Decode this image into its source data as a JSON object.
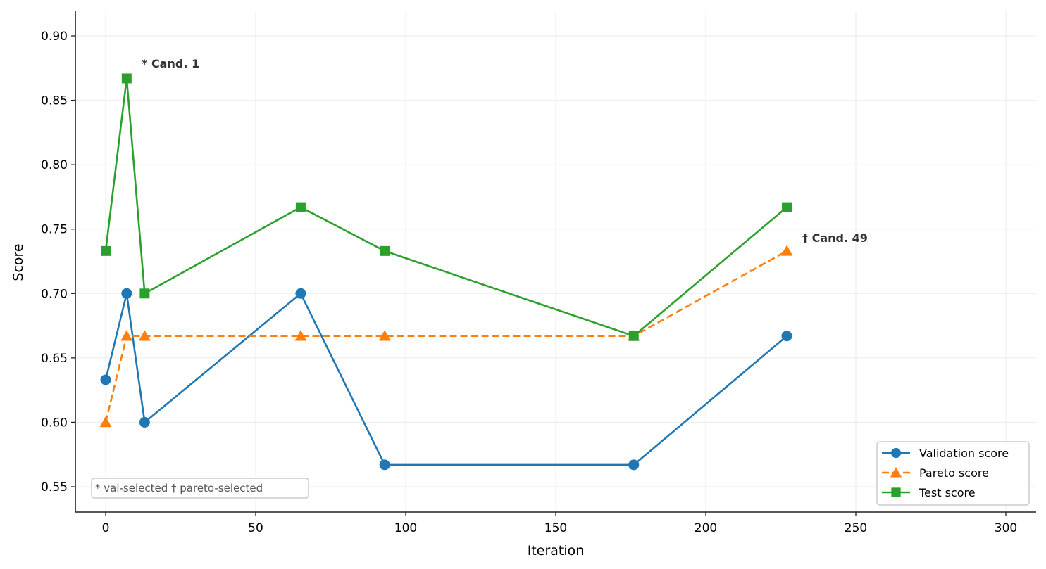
{
  "chart_data": {
    "type": "line",
    "title": "",
    "xlabel": "Iteration",
    "ylabel": "Score",
    "xlim": [
      -10,
      310
    ],
    "ylim": [
      0.53,
      0.92
    ],
    "x_ticks": [
      0,
      50,
      100,
      150,
      200,
      250,
      300
    ],
    "x_tick_labels": [
      "0",
      "50",
      "100",
      "150",
      "200",
      "250",
      "300"
    ],
    "y_ticks": [
      0.55,
      0.6,
      0.65,
      0.7,
      0.75,
      0.8,
      0.85,
      0.9
    ],
    "y_tick_labels": [
      "0.55",
      "0.60",
      "0.65",
      "0.70",
      "0.75",
      "0.80",
      "0.85",
      "0.90"
    ],
    "grid": true,
    "legend_position": "lower right",
    "x": [
      0,
      7,
      13,
      65,
      93,
      176,
      227
    ],
    "series": [
      {
        "name": "Validation score",
        "color": "#1f77b4",
        "marker": "circle",
        "linestyle": "solid",
        "values": [
          0.633,
          0.7,
          0.6,
          0.7,
          0.567,
          0.567,
          0.667
        ]
      },
      {
        "name": "Pareto score",
        "color": "#ff7f0e",
        "marker": "triangle",
        "linestyle": "dashed",
        "values": [
          0.6,
          0.667,
          0.667,
          0.667,
          0.667,
          0.667,
          0.733
        ]
      },
      {
        "name": "Test score",
        "color": "#2ca02c",
        "marker": "square",
        "linestyle": "solid",
        "values": [
          0.733,
          0.867,
          0.7,
          0.767,
          0.733,
          0.667,
          0.767
        ]
      }
    ],
    "annotations": [
      {
        "text": "* Cand. 1",
        "x": 7,
        "y": 0.867
      },
      {
        "text": "† Cand. 49",
        "x": 227,
        "y": 0.733
      }
    ],
    "footnote": "* val-selected    † pareto-selected"
  }
}
